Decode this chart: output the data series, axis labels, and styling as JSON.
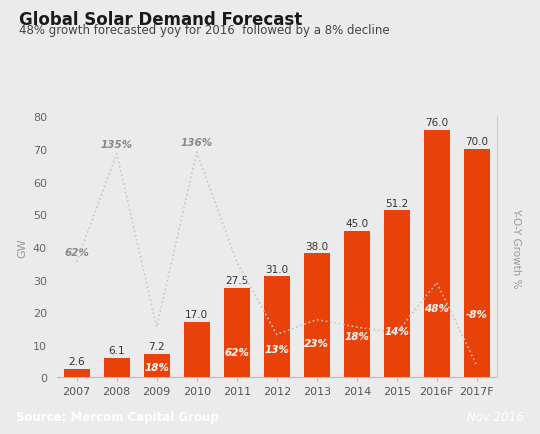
{
  "title": "Global Solar Demand Forecast",
  "subtitle": "48% growth forecasted yoy for 2016  followed by a 8% decline",
  "categories": [
    "2007",
    "2008",
    "2009",
    "2010",
    "2011",
    "2012",
    "2013",
    "2014",
    "2015",
    "2016F",
    "2017F"
  ],
  "values": [
    2.6,
    6.1,
    7.2,
    17.0,
    27.5,
    31.0,
    38.0,
    45.0,
    51.2,
    76.0,
    70.0
  ],
  "bar_color": "#E8420A",
  "growth_pct_labels": [
    "62%",
    "135%",
    "18%",
    "136%",
    "62%",
    "13%",
    "23%",
    "18%",
    "14%",
    "48%",
    "-8%"
  ],
  "growth_raw": [
    62,
    135,
    18,
    136,
    62,
    13,
    23,
    18,
    14,
    48,
    -8
  ],
  "ylabel_left": "GW",
  "ylabel_right": "Y-O-Y Growth %",
  "ylim_left": [
    0,
    80
  ],
  "ylim_right": [
    -16,
    160
  ],
  "yticks": [
    0,
    10,
    20,
    30,
    40,
    50,
    60,
    70,
    80
  ],
  "footer_text_left": "Source: Mercom Capital Group",
  "footer_text_right": "Nov 2016",
  "bg_color": "#EBEBEB",
  "footer_bg_color": "#6B6B6B",
  "footer_text_color": "#FFFFFF",
  "title_color": "#1A1A1A",
  "subtitle_color": "#444444",
  "line_color": "#C8C8C8",
  "bar_value_color": "#333333",
  "outside_pct_color": "#888888",
  "inside_pct_color": "#FFFFFF"
}
